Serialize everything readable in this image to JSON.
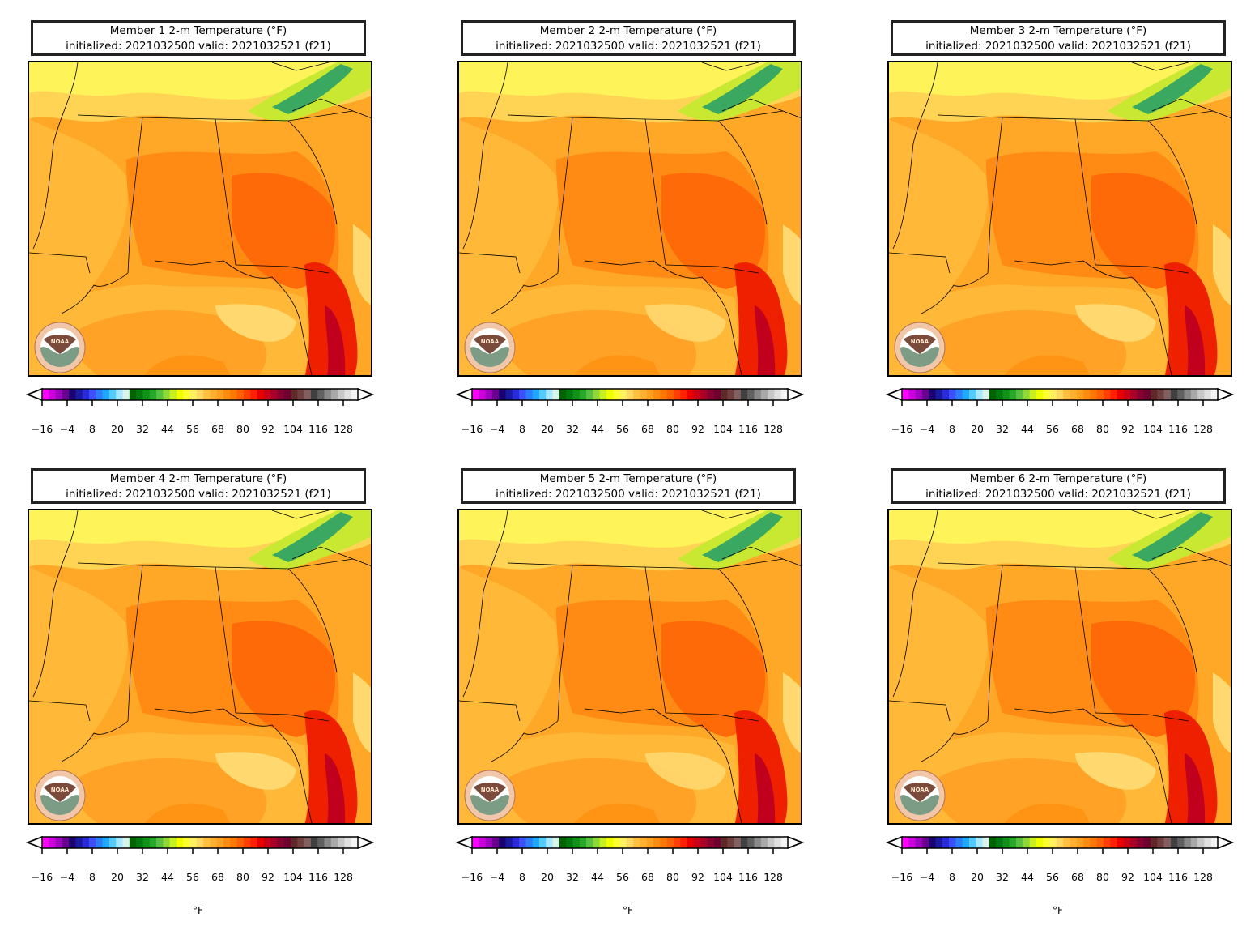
{
  "panels": [
    {
      "title": "Member 1 2-m Temperature (°F)",
      "subtitle": "initialized: 2021032500 valid: 2021032521 (f21)"
    },
    {
      "title": "Member 2 2-m Temperature (°F)",
      "subtitle": "initialized: 2021032500 valid: 2021032521 (f21)"
    },
    {
      "title": "Member 3 2-m Temperature (°F)",
      "subtitle": "initialized: 2021032500 valid: 2021032521 (f21)"
    },
    {
      "title": "Member 4 2-m Temperature (°F)",
      "subtitle": "initialized: 2021032500 valid: 2021032521 (f21)"
    },
    {
      "title": "Member 5 2-m Temperature (°F)",
      "subtitle": "initialized: 2021032500 valid: 2021032521 (f21)"
    },
    {
      "title": "Member 6 2-m Temperature (°F)",
      "subtitle": "initialized: 2021032500 valid: 2021032521 (f21)"
    }
  ],
  "colorbar": {
    "ticks": [
      "−16",
      "−4",
      "8",
      "20",
      "32",
      "44",
      "56",
      "68",
      "80",
      "92",
      "104",
      "116",
      "128"
    ],
    "unit": "°F",
    "colors": [
      "#ff00ff",
      "#cc00dd",
      "#a000c0",
      "#6a0090",
      "#1a0070",
      "#1a1aa0",
      "#2a2ad8",
      "#3c50ff",
      "#2e7cff",
      "#1ea8ff",
      "#52ccff",
      "#a8e8ff",
      "#d8f4ec",
      "#006400",
      "#007a10",
      "#109218",
      "#28a828",
      "#58c040",
      "#90d838",
      "#c8f020",
      "#f0ff00",
      "#ffff30",
      "#fff060",
      "#ffd860",
      "#ffc040",
      "#ffb030",
      "#ffa020",
      "#ff8c10",
      "#ff7800",
      "#ff6000",
      "#ff4000",
      "#ff2000",
      "#e80000",
      "#c80018",
      "#a80028",
      "#880030",
      "#700030",
      "#602828",
      "#704040",
      "#806060",
      "#404040",
      "#606060",
      "#888888",
      "#a8a8a8",
      "#c8c8c8",
      "#e0e0e0",
      "#f4f4f4"
    ]
  },
  "logo": {
    "text": "NOAA",
    "icon": "noaa-logo-icon"
  }
}
